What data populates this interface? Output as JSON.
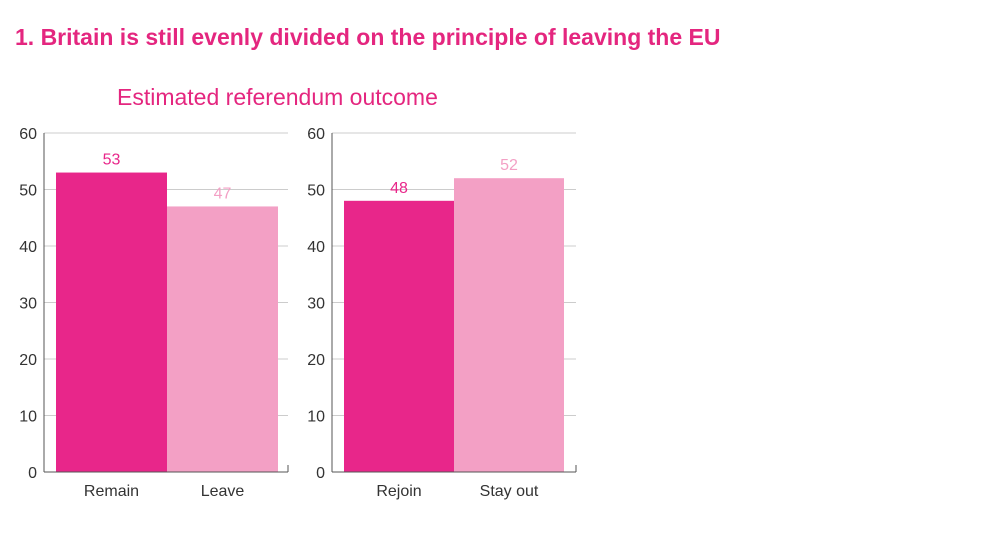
{
  "title": "1. Britain is still evenly divided on the principle of leaving the EU",
  "subtitle": "Estimated referendum outcome",
  "colors": {
    "title": "#e4267f",
    "primary": "#e8268a",
    "secondary": "#f3a0c5",
    "axis": "#555555",
    "grid": "#cccccc",
    "text": "#333333"
  },
  "chart_data": [
    {
      "type": "bar",
      "categories": [
        "Remain",
        "Leave"
      ],
      "values": [
        53,
        47
      ],
      "data_labels": [
        "53",
        "47"
      ],
      "yticks": [
        "0",
        "10",
        "20",
        "30",
        "40",
        "50",
        "60"
      ],
      "ylim": [
        0,
        60
      ],
      "grid": true,
      "bar_colors": [
        "#e8268a",
        "#f3a0c5"
      ]
    },
    {
      "type": "bar",
      "categories": [
        "Rejoin",
        "Stay out"
      ],
      "values": [
        48,
        52
      ],
      "data_labels": [
        "48",
        "52"
      ],
      "yticks": [
        "0",
        "10",
        "20",
        "30",
        "40",
        "50",
        "60"
      ],
      "ylim": [
        0,
        60
      ],
      "grid": true,
      "bar_colors": [
        "#e8268a",
        "#f3a0c5"
      ]
    }
  ]
}
